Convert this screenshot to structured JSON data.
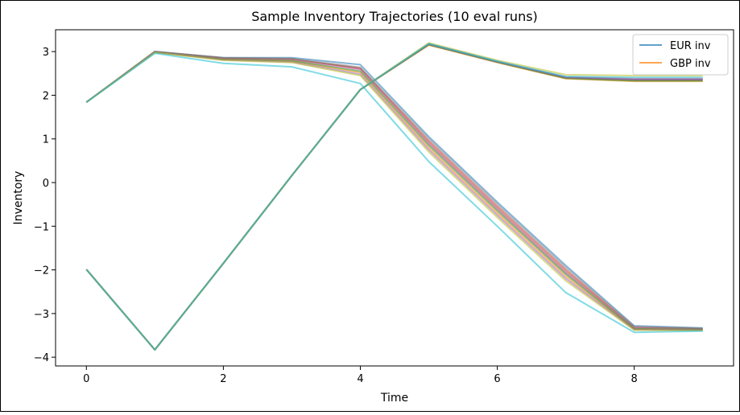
{
  "chart_data": {
    "type": "line",
    "title": "Sample Inventory Trajectories (10 eval runs)",
    "xlabel": "Time",
    "ylabel": "Inventory",
    "xlim": [
      -0.45,
      9.45
    ],
    "ylim": [
      -4.2,
      3.5
    ],
    "xticks": [
      0,
      2,
      4,
      6,
      8
    ],
    "yticks": [
      -4,
      -3,
      -2,
      -1,
      0,
      1,
      2,
      3
    ],
    "grid": false,
    "legend_position": "top-right",
    "legend": [
      {
        "label": "EUR inv",
        "color": "#1f77b4"
      },
      {
        "label": "GBP inv",
        "color": "#ff7f0e"
      }
    ],
    "x": [
      0,
      1,
      2,
      3,
      4,
      5,
      6,
      7,
      8,
      9
    ],
    "series": [
      {
        "currency": "EUR",
        "color": "#1f77b4",
        "values": [
          1.84,
          3.0,
          2.86,
          2.86,
          2.7,
          1.05,
          -0.45,
          -1.9,
          -3.28,
          -3.33
        ]
      },
      {
        "currency": "EUR",
        "color": "#d62728",
        "values": [
          1.84,
          2.99,
          2.84,
          2.82,
          2.62,
          0.95,
          -0.55,
          -2.0,
          -3.32,
          -3.35
        ]
      },
      {
        "currency": "EUR",
        "color": "#8c564b",
        "values": [
          1.84,
          3.0,
          2.85,
          2.83,
          2.6,
          0.9,
          -0.6,
          -2.05,
          -3.33,
          -3.36
        ]
      },
      {
        "currency": "EUR",
        "color": "#e377c2",
        "values": [
          1.84,
          2.99,
          2.83,
          2.8,
          2.58,
          0.88,
          -0.62,
          -2.08,
          -3.34,
          -3.37
        ]
      },
      {
        "currency": "EUR",
        "color": "#7f7f7f",
        "values": [
          1.84,
          3.0,
          2.86,
          2.84,
          2.64,
          1.0,
          -0.5,
          -1.95,
          -3.3,
          -3.34
        ]
      },
      {
        "currency": "EUR",
        "color": "#ff7f0e",
        "values": [
          1.84,
          2.99,
          2.82,
          2.78,
          2.52,
          0.8,
          -0.7,
          -2.15,
          -3.36,
          -3.38
        ]
      },
      {
        "currency": "EUR",
        "color": "#2ca02c",
        "values": [
          1.84,
          2.99,
          2.82,
          2.79,
          2.55,
          0.85,
          -0.65,
          -2.1,
          -3.35,
          -3.37
        ]
      },
      {
        "currency": "EUR",
        "color": "#9467bd",
        "values": [
          1.84,
          2.99,
          2.81,
          2.76,
          2.48,
          0.75,
          -0.75,
          -2.2,
          -3.37,
          -3.38
        ]
      },
      {
        "currency": "EUR",
        "color": "#bcbd22",
        "values": [
          1.84,
          2.98,
          2.8,
          2.75,
          2.45,
          0.7,
          -0.8,
          -2.25,
          -3.38,
          -3.39
        ]
      },
      {
        "currency": "EUR",
        "color": "#17becf",
        "values": [
          1.84,
          2.96,
          2.73,
          2.65,
          2.27,
          0.48,
          -1.0,
          -2.52,
          -3.43,
          -3.4
        ]
      },
      {
        "currency": "GBP",
        "color": "#1f77b4",
        "values": [
          -1.99,
          -3.83,
          -1.85,
          0.16,
          2.13,
          3.17,
          2.76,
          2.4,
          2.36,
          2.36
        ]
      },
      {
        "currency": "GBP",
        "color": "#d62728",
        "values": [
          -1.99,
          -3.83,
          -1.85,
          0.16,
          2.13,
          3.16,
          2.76,
          2.4,
          2.35,
          2.35
        ]
      },
      {
        "currency": "GBP",
        "color": "#8c564b",
        "values": [
          -1.99,
          -3.83,
          -1.85,
          0.16,
          2.13,
          3.16,
          2.76,
          2.39,
          2.34,
          2.34
        ]
      },
      {
        "currency": "GBP",
        "color": "#e377c2",
        "values": [
          -1.99,
          -3.83,
          -1.85,
          0.16,
          2.13,
          3.18,
          2.77,
          2.42,
          2.38,
          2.38
        ]
      },
      {
        "currency": "GBP",
        "color": "#7f7f7f",
        "values": [
          -1.99,
          -3.83,
          -1.85,
          0.16,
          2.13,
          3.17,
          2.76,
          2.41,
          2.37,
          2.37
        ]
      },
      {
        "currency": "GBP",
        "color": "#ff7f0e",
        "values": [
          -1.99,
          -3.83,
          -1.85,
          0.16,
          2.13,
          3.15,
          2.75,
          2.38,
          2.32,
          2.32
        ]
      },
      {
        "currency": "GBP",
        "color": "#2ca02c",
        "values": [
          -1.99,
          -3.83,
          -1.85,
          0.16,
          2.13,
          3.16,
          2.76,
          2.39,
          2.33,
          2.33
        ]
      },
      {
        "currency": "GBP",
        "color": "#9467bd",
        "values": [
          -1.99,
          -3.83,
          -1.85,
          0.16,
          2.13,
          3.17,
          2.77,
          2.41,
          2.36,
          2.36
        ]
      },
      {
        "currency": "GBP",
        "color": "#bcbd22",
        "values": [
          -1.99,
          -3.83,
          -1.85,
          0.16,
          2.13,
          3.2,
          2.8,
          2.47,
          2.45,
          2.45
        ]
      },
      {
        "currency": "GBP",
        "color": "#17becf",
        "values": [
          -1.99,
          -3.83,
          -1.85,
          0.16,
          2.13,
          3.18,
          2.78,
          2.43,
          2.41,
          2.41
        ]
      }
    ]
  }
}
